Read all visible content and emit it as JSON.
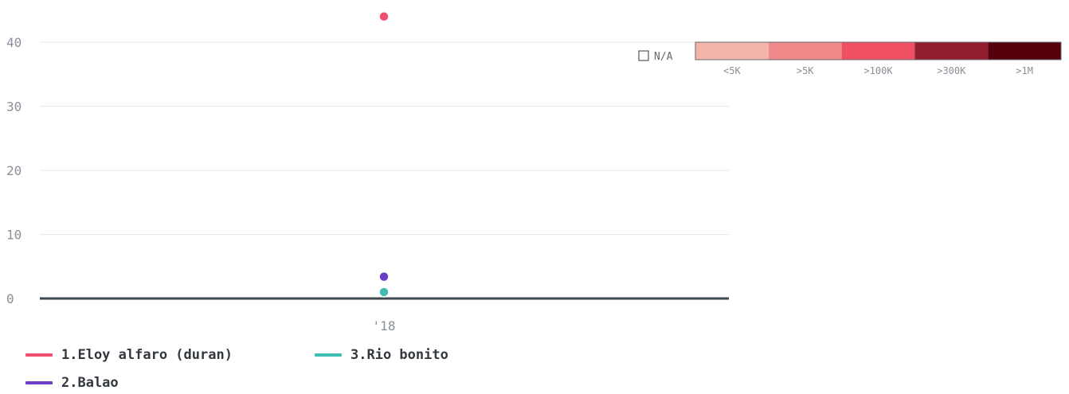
{
  "chart_data": {
    "type": "scatter",
    "title": "",
    "xlabel": "",
    "ylabel": "",
    "x_categories": [
      "'18"
    ],
    "ylim": [
      0,
      45
    ],
    "yticks": [
      0,
      10,
      20,
      30,
      40
    ],
    "grid": true,
    "series": [
      {
        "name": "1.Eloy alfaro (duran)",
        "color": "#f0506e",
        "x": "'18",
        "y": 44
      },
      {
        "name": "2.Balao",
        "color": "#6a3fc8",
        "x": "'18",
        "y": 3.4
      },
      {
        "name": "3.Rio bonito",
        "color": "#3fbfb3",
        "x": "'18",
        "y": 1
      }
    ],
    "color_scale": {
      "na_label": "N/A",
      "bins": [
        {
          "label": "<5K",
          "color": "#f3b5ab"
        },
        {
          "label": ">5K",
          "color": "#f08a8a"
        },
        {
          "label": ">100K",
          "color": "#ef5064"
        },
        {
          "label": ">300K",
          "color": "#921f2e"
        },
        {
          "label": ">1M",
          "color": "#55000c"
        }
      ]
    }
  }
}
